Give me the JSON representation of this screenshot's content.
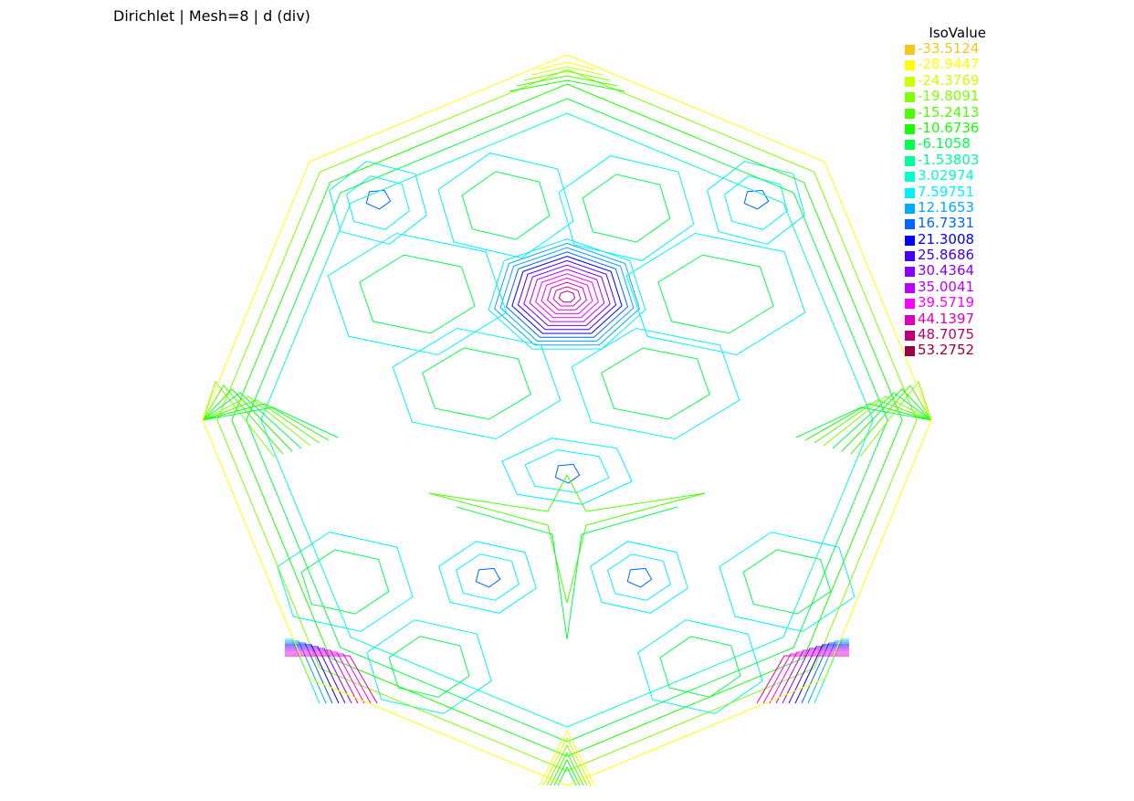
{
  "chart_data": {
    "type": "contour",
    "title": "Dirichlet | Mesh=8 | d (div)",
    "legend_title": "IsoValue",
    "boundary_shape": "heptagon",
    "isovalues": [
      {
        "value": "-33.5124",
        "color": "#f2c81a"
      },
      {
        "value": "-28.9447",
        "color": "#ffff00"
      },
      {
        "value": "-24.3769",
        "color": "#ccff00"
      },
      {
        "value": "-19.8091",
        "color": "#80ff00"
      },
      {
        "value": "-15.2413",
        "color": "#4cff00"
      },
      {
        "value": "-10.6736",
        "color": "#1aff00"
      },
      {
        "value": "-6.1058",
        "color": "#00ff4c"
      },
      {
        "value": "-1.53803",
        "color": "#00ff99"
      },
      {
        "value": "3.02974",
        "color": "#00ffcc"
      },
      {
        "value": "7.59751",
        "color": "#00f2ff"
      },
      {
        "value": "12.1653",
        "color": "#00aaff"
      },
      {
        "value": "16.7331",
        "color": "#0066ff"
      },
      {
        "value": "21.3008",
        "color": "#0000ff"
      },
      {
        "value": "25.8686",
        "color": "#4400ff"
      },
      {
        "value": "30.4364",
        "color": "#8800ff"
      },
      {
        "value": "35.0041",
        "color": "#bb00ff"
      },
      {
        "value": "39.5719",
        "color": "#ff00ff"
      },
      {
        "value": "44.1397",
        "color": "#dd00bb"
      },
      {
        "value": "48.7075",
        "color": "#bb0077"
      },
      {
        "value": "53.2752",
        "color": "#990044"
      }
    ]
  }
}
